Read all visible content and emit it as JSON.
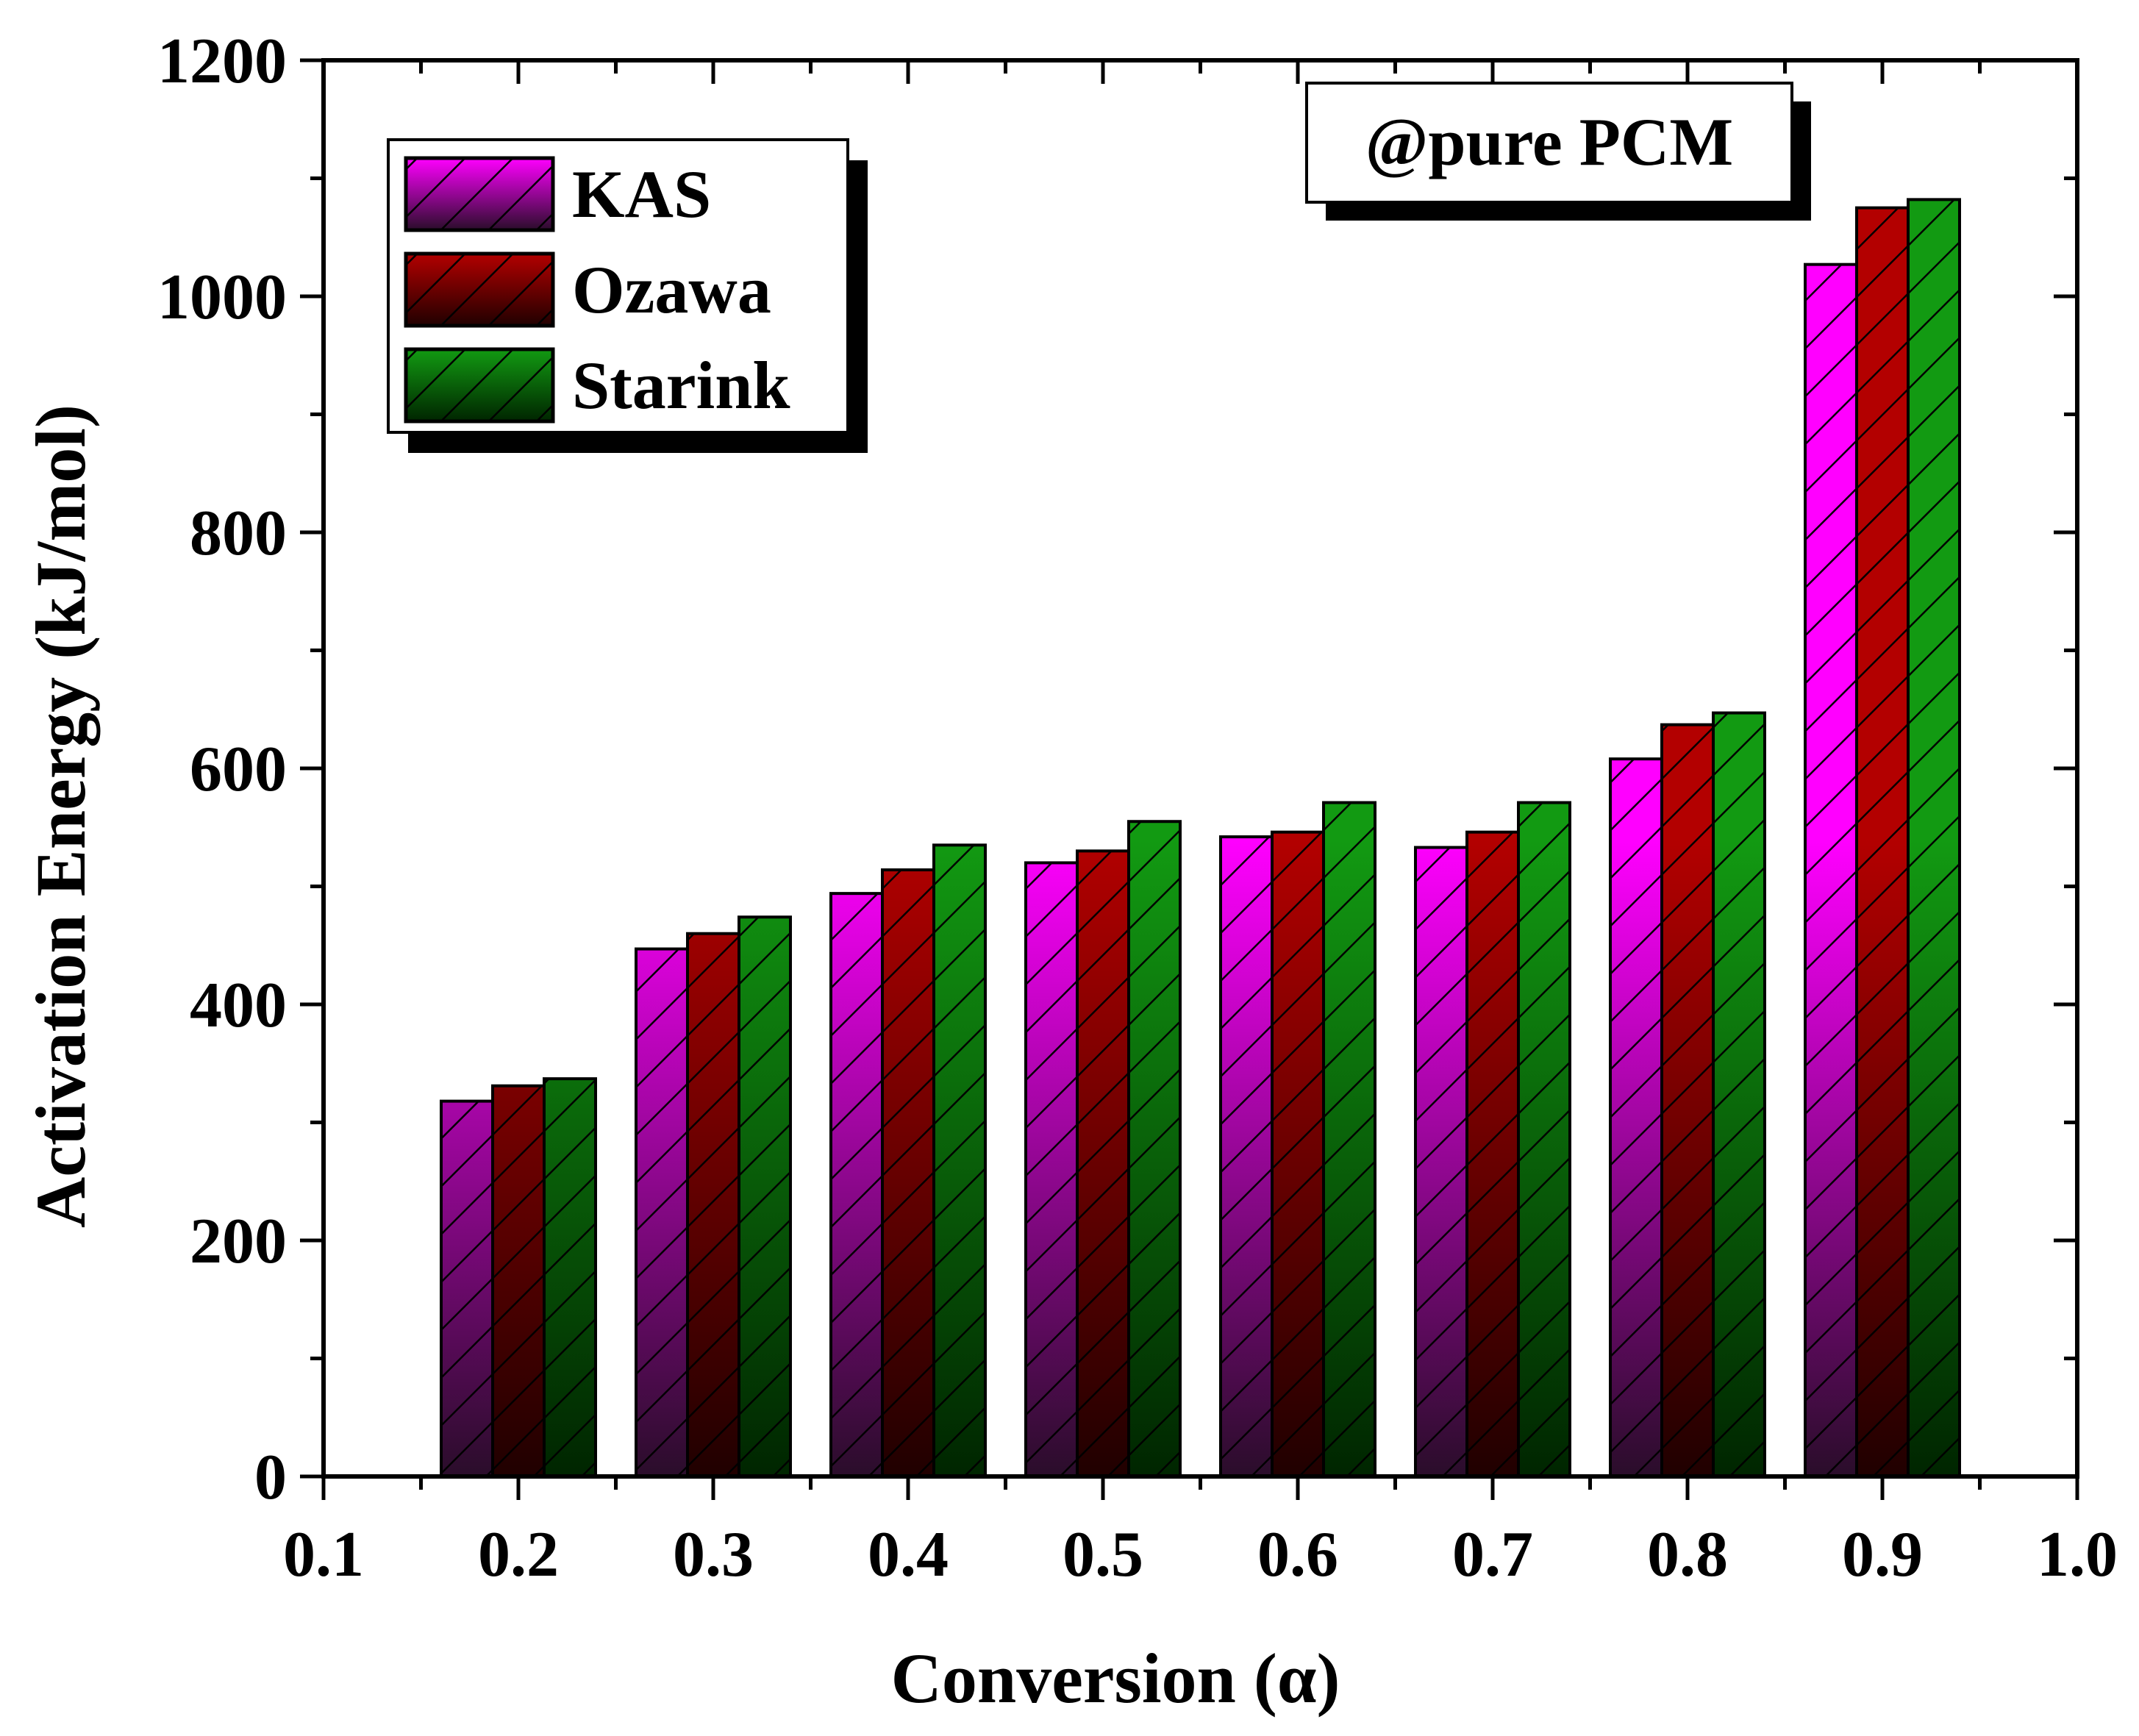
{
  "chart_data": {
    "type": "bar",
    "title": "",
    "annotation": "@pure PCM",
    "xlabel": "Conversion (α)",
    "ylabel": "Activation Energy (kJ/mol)",
    "xlim": [
      0.1,
      1.0
    ],
    "ylim": [
      0,
      1200
    ],
    "x_ticks": [
      "0.1",
      "0.2",
      "0.3",
      "0.4",
      "0.5",
      "0.6",
      "0.7",
      "0.8",
      "0.9",
      "1.0"
    ],
    "y_ticks": [
      "0",
      "200",
      "400",
      "600",
      "800",
      "1000",
      "1200"
    ],
    "categories": [
      0.2,
      0.3,
      0.4,
      0.5,
      0.6,
      0.7,
      0.8,
      0.9
    ],
    "grid": false,
    "legend_position": "top-left",
    "series": [
      {
        "name": "KAS",
        "color_top": "#ff00ff",
        "color_bottom": "#2a0d2a",
        "values": [
          318,
          447,
          494,
          520,
          542,
          533,
          608,
          1027
        ]
      },
      {
        "name": "Ozawa",
        "color_top": "#b30000",
        "color_bottom": "#200000",
        "values": [
          331,
          460,
          514,
          530,
          546,
          546,
          637,
          1075
        ]
      },
      {
        "name": "Starink",
        "color_top": "#129a12",
        "color_bottom": "#002500",
        "values": [
          337,
          474,
          535,
          555,
          571,
          571,
          647,
          1082
        ]
      }
    ]
  }
}
